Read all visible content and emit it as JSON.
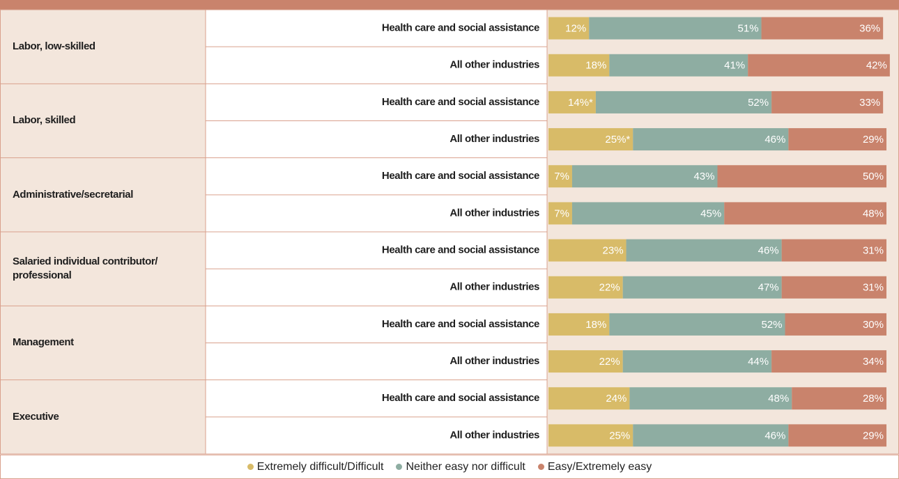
{
  "chart_data": {
    "type": "stacked_bar_horizontal",
    "groups": [
      "Labor, low-skilled",
      "Labor, skilled",
      "Administrative/secretarial",
      "Salaried individual contributor/ professional",
      "Management",
      "Executive"
    ],
    "categories": [
      "Health care and social assistance",
      "All other industries",
      "Health care and social assistance",
      "All other industries",
      "Health care and social assistance",
      "All other industries",
      "Health care and social assistance",
      "All other industries",
      "Health care and social assistance",
      "All other industries",
      "Health care and social assistance",
      "All other industries"
    ],
    "xlim": [
      0,
      100
    ],
    "series": [
      {
        "name": "Extremely difficult/Difficult",
        "color": "#d8bb68",
        "values": [
          12,
          18,
          14,
          25,
          7,
          7,
          23,
          22,
          18,
          22,
          24,
          25
        ],
        "value_labels": [
          "12%",
          "18%",
          "14%*",
          "25%*",
          "7%",
          "7%",
          "23%",
          "22%",
          "18%",
          "22%",
          "24%",
          "25%"
        ]
      },
      {
        "name": "Neither easy nor difficult",
        "color": "#8eada2",
        "values": [
          51,
          41,
          52,
          46,
          43,
          45,
          46,
          47,
          52,
          44,
          48,
          46
        ],
        "value_labels": [
          "51%",
          "41%",
          "52%",
          "46%",
          "43%",
          "45%",
          "46%",
          "47%",
          "52%",
          "44%",
          "48%",
          "46%"
        ]
      },
      {
        "name": "Easy/Extremely easy",
        "color": "#c9836c",
        "values": [
          36,
          42,
          33,
          29,
          50,
          48,
          31,
          31,
          30,
          34,
          28,
          29
        ],
        "value_labels": [
          "36%",
          "42%",
          "33%",
          "29%",
          "50%",
          "48%",
          "31%",
          "31%",
          "30%",
          "34%",
          "28%",
          "29%"
        ]
      }
    ]
  }
}
